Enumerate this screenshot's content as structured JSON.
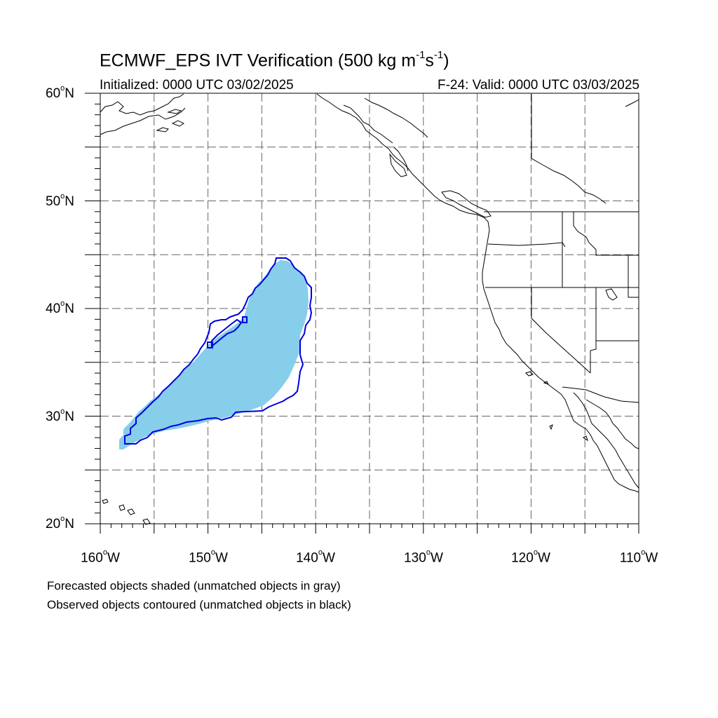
{
  "header": {
    "title_main": "ECMWF_EPS IVT Verification (500 kg m",
    "title_exp1": "-1",
    "title_mid": "s",
    "title_exp2": "-1",
    "title_end": ")",
    "initialized": "Initialized: 0000 UTC 03/02/2025",
    "valid": "F-24: Valid: 0000 UTC 03/03/2025"
  },
  "map": {
    "lon_range": [
      -160,
      -110
    ],
    "lat_range": [
      20,
      60
    ],
    "lat_labels": [
      {
        "num": "60",
        "deg": "o",
        "hem": "N"
      },
      {
        "num": "50",
        "deg": "o",
        "hem": "N"
      },
      {
        "num": "40",
        "deg": "o",
        "hem": "N"
      },
      {
        "num": "30",
        "deg": "o",
        "hem": "N"
      },
      {
        "num": "20",
        "deg": "o",
        "hem": "N"
      }
    ],
    "lon_labels": [
      {
        "num": "160",
        "deg": "o",
        "hem": "W"
      },
      {
        "num": "150",
        "deg": "o",
        "hem": "W"
      },
      {
        "num": "140",
        "deg": "o",
        "hem": "W"
      },
      {
        "num": "130",
        "deg": "o",
        "hem": "W"
      },
      {
        "num": "120",
        "deg": "o",
        "hem": "W"
      },
      {
        "num": "110",
        "deg": "o",
        "hem": "W"
      }
    ],
    "colors": {
      "forecast_fill": "#87ceeb",
      "observed_contour": "#0000dd",
      "coastline": "#000000",
      "grid": "#666666"
    },
    "grid": "dashed, every 5 degrees"
  },
  "notes": {
    "forecast": "Forecasted objects shaded (unmatched objects in gray)",
    "observed": "Observed objects contoured (unmatched objects in black)"
  }
}
